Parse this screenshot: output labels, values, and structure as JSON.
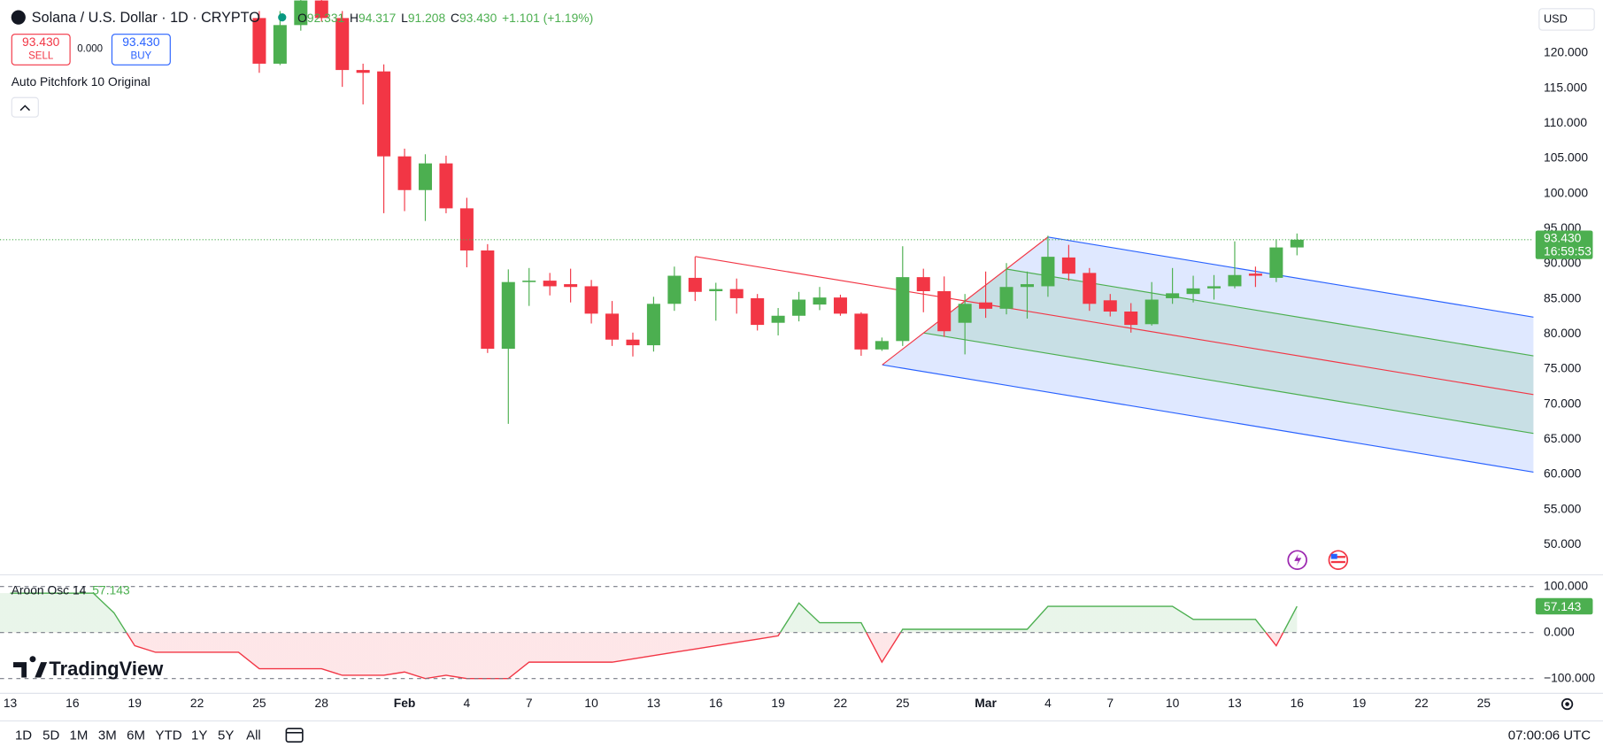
{
  "header": {
    "open_label": "O",
    "high_label": "H",
    "low_label": "L",
    "close_label": "C",
    "last_close_label": "93.430",
    "change": "+1.101 (+1.19%)",
    "currency": "USD",
    "countdown": "16:59:53",
    "indicator": "Auto Pitchfork 10 Original",
    "brand": "TradingView",
    "clock": "07:00:06 UTC",
    "ranges": [
      "1D",
      "5D",
      "1M",
      "3M",
      "6M",
      "YTD",
      "1Y",
      "5Y",
      "All"
    ]
  },
  "trade": {
    "sell_price": "93.430",
    "sell": "SELL",
    "spread": "0.000",
    "buy_price": "93.430",
    "buy": "BUY"
  },
  "chart_data": [
    {
      "type": "candlestick",
      "title": "Solana / U.S. Dollar · 1D · CRYPTO",
      "up_color": "#4caf50",
      "down_color": "#f23645",
      "x": [
        "01-25",
        "01-26",
        "01-27",
        "01-28",
        "01-29",
        "01-30",
        "01-31",
        "02-01",
        "02-02",
        "02-03",
        "02-04",
        "02-05",
        "02-06",
        "02-07",
        "02-08",
        "02-09",
        "02-10",
        "02-11",
        "02-12",
        "02-13",
        "02-14",
        "02-15",
        "02-16",
        "02-17",
        "02-18",
        "02-19",
        "02-20",
        "02-21",
        "02-22",
        "02-23",
        "02-24",
        "02-25",
        "02-26",
        "02-27",
        "02-28",
        "03-01",
        "03-02",
        "03-03",
        "03-04",
        "03-05",
        "03-06",
        "03-07",
        "03-08",
        "03-09",
        "03-10",
        "03-11",
        "03-12",
        "03-13",
        "03-14",
        "03-15",
        "03-16"
      ],
      "open": [
        125.0,
        118.5,
        124.0,
        127.5,
        125.0,
        117.6,
        117.4,
        105.3,
        100.5,
        104.3,
        97.9,
        91.9,
        77.9,
        87.4,
        87.6,
        87.1,
        86.8,
        82.9,
        79.2,
        78.4,
        84.3,
        88.0,
        86.1,
        86.4,
        85.1,
        81.6,
        82.6,
        84.2,
        85.2,
        82.9,
        77.8,
        79.0,
        88.1,
        86.1,
        81.6,
        84.5,
        83.6,
        86.7,
        86.8,
        90.9,
        88.7,
        84.8,
        83.2,
        81.4,
        85.1,
        85.7,
        86.5,
        86.8,
        88.6,
        88.0,
        92.331
      ],
      "high": [
        126.0,
        126.0,
        128.5,
        128.0,
        126.0,
        118.5,
        118.4,
        106.4,
        105.6,
        105.4,
        99.4,
        92.8,
        89.2,
        89.4,
        88.7,
        89.3,
        87.7,
        84.7,
        80.2,
        85.3,
        89.6,
        91.0,
        87.3,
        87.9,
        85.7,
        83.7,
        86.0,
        86.7,
        85.6,
        83.1,
        79.5,
        92.5,
        89.3,
        88.2,
        85.7,
        88.9,
        90.1,
        88.9,
        94.0,
        92.7,
        89.4,
        85.7,
        84.4,
        87.4,
        89.4,
        88.3,
        88.4,
        93.2,
        89.6,
        93.5,
        94.317
      ],
      "low": [
        117.2,
        118.3,
        123.2,
        124.5,
        115.2,
        112.7,
        97.2,
        97.5,
        96.1,
        97.2,
        89.5,
        77.3,
        67.2,
        84.0,
        85.5,
        84.5,
        81.5,
        78.3,
        76.8,
        77.5,
        83.3,
        84.7,
        81.9,
        82.9,
        80.5,
        79.8,
        81.8,
        83.4,
        82.6,
        76.9,
        77.6,
        78.3,
        83.1,
        79.6,
        77.1,
        82.3,
        82.8,
        82.2,
        85.3,
        87.6,
        83.3,
        82.5,
        80.2,
        81.2,
        84.3,
        84.5,
        84.9,
        86.5,
        86.7,
        87.4,
        91.208
      ],
      "close": [
        118.5,
        124.0,
        127.5,
        125.0,
        117.6,
        117.2,
        105.3,
        100.5,
        104.3,
        97.9,
        91.9,
        77.9,
        87.4,
        87.6,
        86.8,
        86.7,
        82.9,
        79.2,
        78.4,
        84.3,
        88.3,
        86.0,
        86.4,
        85.1,
        81.3,
        82.6,
        84.9,
        85.2,
        82.9,
        77.8,
        79.0,
        88.1,
        86.1,
        80.4,
        84.3,
        83.6,
        86.7,
        87.1,
        91.0,
        88.6,
        84.3,
        83.2,
        81.3,
        84.9,
        85.8,
        86.5,
        86.8,
        88.4,
        88.3,
        92.329,
        93.43
      ],
      "xlim": [
        "01-13",
        "03-27"
      ],
      "xticks": [
        {
          "value": "01-13",
          "label": "13"
        },
        {
          "value": "01-16",
          "label": "16"
        },
        {
          "value": "01-19",
          "label": "19"
        },
        {
          "value": "01-22",
          "label": "22"
        },
        {
          "value": "01-25",
          "label": "25"
        },
        {
          "value": "01-28",
          "label": "28"
        },
        {
          "value": "02-01",
          "label": "Feb"
        },
        {
          "value": "02-04",
          "label": "4"
        },
        {
          "value": "02-07",
          "label": "7"
        },
        {
          "value": "02-10",
          "label": "10"
        },
        {
          "value": "02-13",
          "label": "13"
        },
        {
          "value": "02-16",
          "label": "16"
        },
        {
          "value": "02-19",
          "label": "19"
        },
        {
          "value": "02-22",
          "label": "22"
        },
        {
          "value": "02-25",
          "label": "25"
        },
        {
          "value": "03-01",
          "label": "Mar"
        },
        {
          "value": "03-04",
          "label": "4"
        },
        {
          "value": "03-07",
          "label": "7"
        },
        {
          "value": "03-10",
          "label": "10"
        },
        {
          "value": "03-13",
          "label": "13"
        },
        {
          "value": "03-16",
          "label": "16"
        },
        {
          "value": "03-19",
          "label": "19"
        },
        {
          "value": "03-22",
          "label": "22"
        },
        {
          "value": "03-25",
          "label": "25"
        }
      ],
      "ylim": [
        46.07,
        127.57
      ],
      "yticks": [
        {
          "value": 50,
          "label": "50.000"
        },
        {
          "value": 55,
          "label": "55.000"
        },
        {
          "value": 60,
          "label": "60.000"
        },
        {
          "value": 65,
          "label": "65.000"
        },
        {
          "value": 70,
          "label": "70.000"
        },
        {
          "value": 75,
          "label": "75.000"
        },
        {
          "value": 80,
          "label": "80.000"
        },
        {
          "value": 85,
          "label": "85.000"
        },
        {
          "value": 90,
          "label": "90.000"
        },
        {
          "value": 95,
          "label": "95.000"
        },
        {
          "value": 100,
          "label": "100.000"
        },
        {
          "value": 105,
          "label": "105.000"
        },
        {
          "value": 110,
          "label": "110.000"
        },
        {
          "value": 115,
          "label": "115.000"
        },
        {
          "value": 120,
          "label": "120.000"
        }
      ],
      "grid": false
    },
    {
      "type": "line",
      "title": "Aroon Osc 14",
      "up_color": "#4caf50",
      "down_color": "#f23645",
      "x": [
        "01-13",
        "01-14",
        "01-15",
        "01-16",
        "01-17",
        "01-18",
        "01-19",
        "01-20",
        "01-21",
        "01-22",
        "01-23",
        "01-24",
        "01-25",
        "01-26",
        "01-27",
        "01-28",
        "01-29",
        "01-30",
        "01-31",
        "02-01",
        "02-02",
        "02-03",
        "02-04",
        "02-05",
        "02-06",
        "02-07",
        "02-08",
        "02-09",
        "02-10",
        "02-11",
        "02-12",
        "02-13",
        "02-14",
        "02-15",
        "02-16",
        "02-17",
        "02-18",
        "02-19",
        "02-20",
        "02-21",
        "02-22",
        "02-23",
        "02-24",
        "02-25",
        "02-26",
        "02-27",
        "02-28",
        "03-01",
        "03-02",
        "03-03",
        "03-04",
        "03-05",
        "03-06",
        "03-07",
        "03-08",
        "03-09",
        "03-10",
        "03-11",
        "03-12",
        "03-13",
        "03-14",
        "03-15",
        "03-16"
      ],
      "values": [
        85.714,
        85.714,
        85.714,
        85.714,
        85.714,
        42.857,
        -28.571,
        -42.857,
        -42.857,
        -42.857,
        -42.857,
        -42.857,
        -78.571,
        -78.571,
        -78.571,
        -78.571,
        -92.857,
        -92.857,
        -92.857,
        -85.714,
        -100,
        -92.857,
        -100,
        -100,
        -100,
        -64.286,
        -64.286,
        -64.286,
        -64.286,
        -64.286,
        -57.143,
        -50,
        -42.857,
        -35.714,
        -28.571,
        -21.429,
        -14.286,
        -7.143,
        64.286,
        21.429,
        21.429,
        21.429,
        -64.286,
        7.143,
        7.143,
        7.143,
        7.143,
        7.143,
        7.143,
        7.143,
        57.143,
        57.143,
        57.143,
        57.143,
        57.143,
        57.143,
        57.143,
        28.571,
        28.571,
        28.571,
        28.571,
        -28.571,
        57.143
      ],
      "xlim": [
        "01-13",
        "03-27"
      ],
      "ylim": [
        -131,
        120
      ],
      "yticks": [
        {
          "value": 100,
          "label": "100.000"
        },
        {
          "value": 0,
          "label": "0.000"
        },
        {
          "value": -100,
          "label": "−100.000"
        }
      ],
      "grid": true
    }
  ]
}
